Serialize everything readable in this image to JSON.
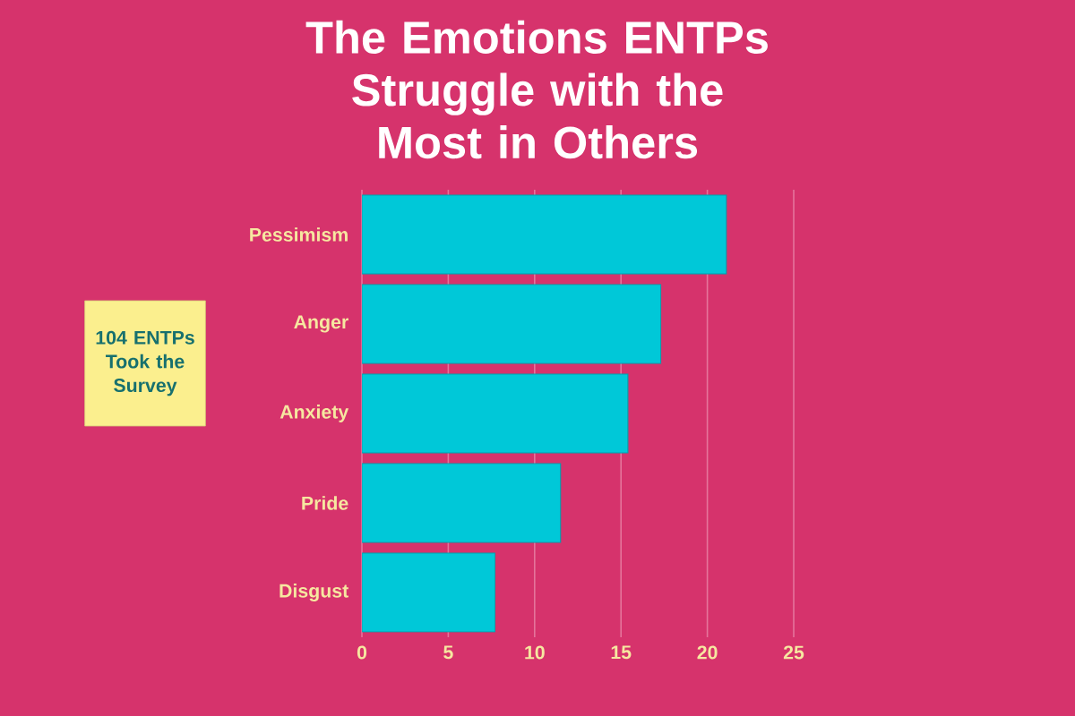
{
  "chart_data": {
    "type": "bar",
    "orientation": "horizontal",
    "title": "The Emotions ENTPs Struggle with the Most in Others",
    "categories": [
      "Pessimism",
      "Anger",
      "Anxiety",
      "Pride",
      "Disgust"
    ],
    "values": [
      21.1,
      17.3,
      15.4,
      11.5,
      7.7
    ],
    "color": "#00c8d8",
    "xlim": [
      0,
      25
    ],
    "xticks": [
      0,
      5,
      10,
      15,
      20,
      25
    ],
    "grid": "x",
    "annotations": [
      "104 ENTPs Took the Survey"
    ]
  }
}
